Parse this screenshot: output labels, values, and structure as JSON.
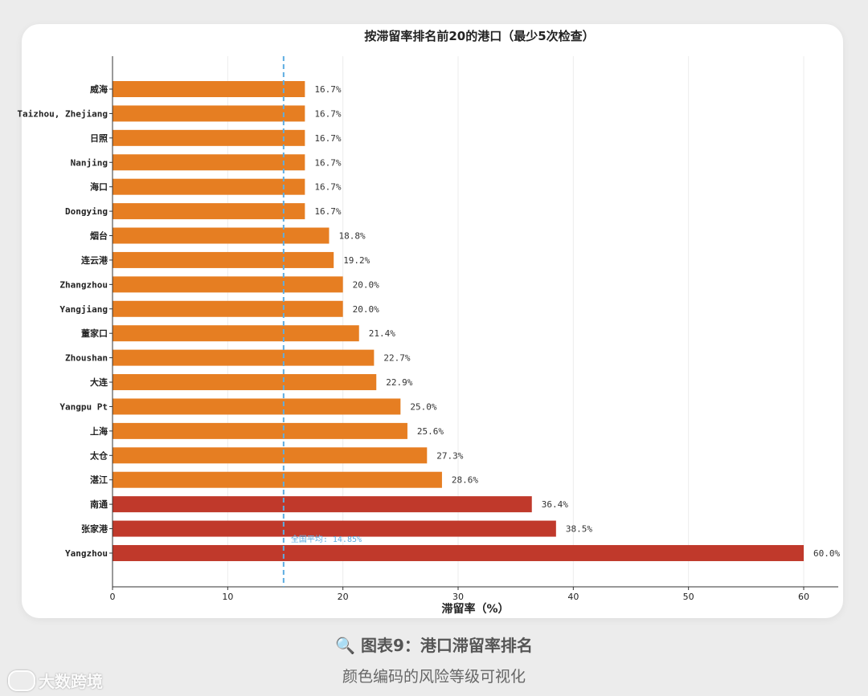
{
  "caption": {
    "icon": "magnifier-icon",
    "icon_glyph": "🔍",
    "title": "图表9：港口滞留率排名",
    "subtitle": "颜色编码的风险等级可视化"
  },
  "watermark": {
    "text": "大数跨境",
    "icon": "logo-icon"
  },
  "chart_data": {
    "type": "bar",
    "orientation": "horizontal",
    "title": "按滞留率排名前20的港口（最少5次检查）",
    "xlabel": "滞留率（%）",
    "ylabel": "",
    "xlim": [
      0,
      63
    ],
    "xticks": [
      0,
      10,
      20,
      30,
      40,
      50,
      60
    ],
    "grid": "vertical",
    "categories": [
      "威海",
      "Taizhou, Zhejiang",
      "日照",
      "Nanjing",
      "海口",
      "Dongying",
      "烟台",
      "连云港",
      "Zhangzhou",
      "Yangjiang",
      "董家口",
      "Zhoushan",
      "大连",
      "Yangpu Pt",
      "上海",
      "太仓",
      "湛江",
      "南通",
      "张家港",
      "Yangzhou"
    ],
    "values": [
      16.7,
      16.7,
      16.7,
      16.7,
      16.7,
      16.7,
      18.8,
      19.2,
      20.0,
      20.0,
      21.4,
      22.7,
      22.9,
      25.0,
      25.6,
      27.3,
      28.6,
      36.4,
      38.5,
      60.0
    ],
    "value_labels": [
      "16.7%",
      "16.7%",
      "16.7%",
      "16.7%",
      "16.7%",
      "16.7%",
      "18.8%",
      "19.2%",
      "20.0%",
      "20.0%",
      "21.4%",
      "22.7%",
      "22.9%",
      "25.0%",
      "25.6%",
      "27.3%",
      "28.6%",
      "36.4%",
      "38.5%",
      "60.0%"
    ],
    "colors": {
      "medium_risk": "#e67e22",
      "high_risk": "#c0392b",
      "average_line": "#5dade2"
    },
    "high_risk_threshold": 30,
    "reference_line": {
      "value": 14.85,
      "label": "全国平均: 14.85%"
    }
  }
}
